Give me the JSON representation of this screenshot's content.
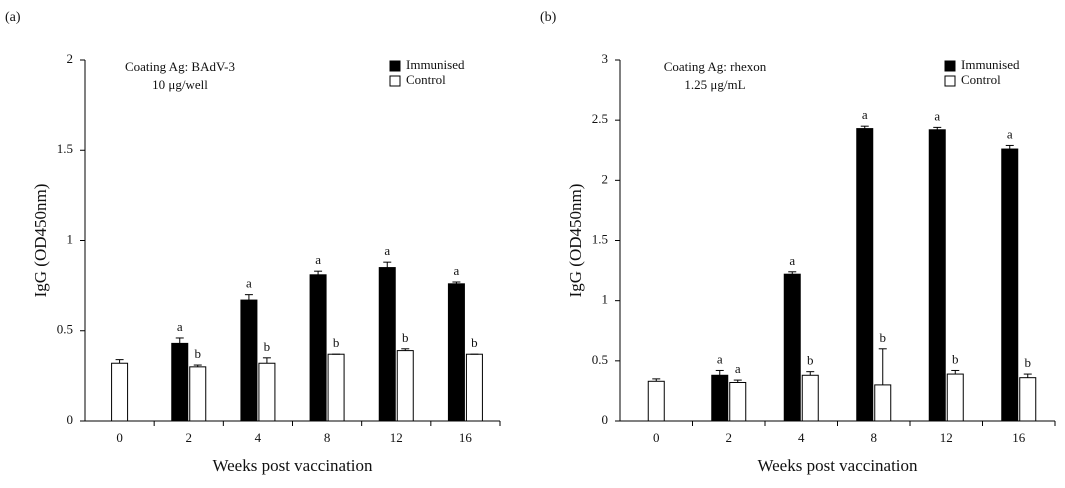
{
  "chart_data": [
    {
      "type": "bar",
      "panel": "(a)",
      "annotation": [
        "Coating Ag: BAdV-3",
        "10 μg/well"
      ],
      "ylabel": "IgG (OD450nm)",
      "xlabel": "Weeks post vaccination",
      "categories": [
        "0",
        "2",
        "4",
        "8",
        "12",
        "16"
      ],
      "ylim": [
        0,
        2
      ],
      "yticks": [
        0,
        0.5,
        1,
        1.5,
        2
      ],
      "legend": "top-right",
      "series": [
        {
          "name": "Immunised",
          "color": "#000000",
          "values": [
            null,
            0.43,
            0.67,
            0.81,
            0.85,
            0.76
          ],
          "errors": [
            null,
            0.03,
            0.03,
            0.02,
            0.03,
            0.01
          ],
          "letters": [
            null,
            "a",
            "a",
            "a",
            "a",
            "a"
          ]
        },
        {
          "name": "Control",
          "color": "#ffffff",
          "values": [
            0.32,
            0.3,
            0.32,
            0.37,
            0.39,
            0.37
          ],
          "errors": [
            0.02,
            0.01,
            0.03,
            0.0,
            0.01,
            0.0
          ],
          "letters": [
            null,
            "b",
            "b",
            "b",
            "b",
            "b"
          ]
        }
      ]
    },
    {
      "type": "bar",
      "panel": "(b)",
      "annotation": [
        "Coating Ag: rhexon",
        "1.25 μg/mL"
      ],
      "ylabel": "IgG (OD450nm)",
      "xlabel": "Weeks post vaccination",
      "categories": [
        "0",
        "2",
        "4",
        "8",
        "12",
        "16"
      ],
      "ylim": [
        0,
        3
      ],
      "yticks": [
        0,
        0.5,
        1,
        1.5,
        2,
        2.5,
        3
      ],
      "legend": "top-right",
      "series": [
        {
          "name": "Immunised",
          "color": "#000000",
          "values": [
            null,
            0.38,
            1.22,
            2.43,
            2.42,
            2.26
          ],
          "errors": [
            null,
            0.04,
            0.02,
            0.02,
            0.02,
            0.03
          ],
          "letters": [
            null,
            "a",
            "a",
            "a",
            "a",
            "a"
          ]
        },
        {
          "name": "Control",
          "color": "#ffffff",
          "values": [
            0.33,
            0.32,
            0.38,
            0.3,
            0.39,
            0.36
          ],
          "errors": [
            0.02,
            0.02,
            0.03,
            0.3,
            0.03,
            0.03
          ],
          "letters": [
            null,
            "a",
            "b",
            "b",
            "b",
            "b"
          ]
        }
      ]
    }
  ]
}
